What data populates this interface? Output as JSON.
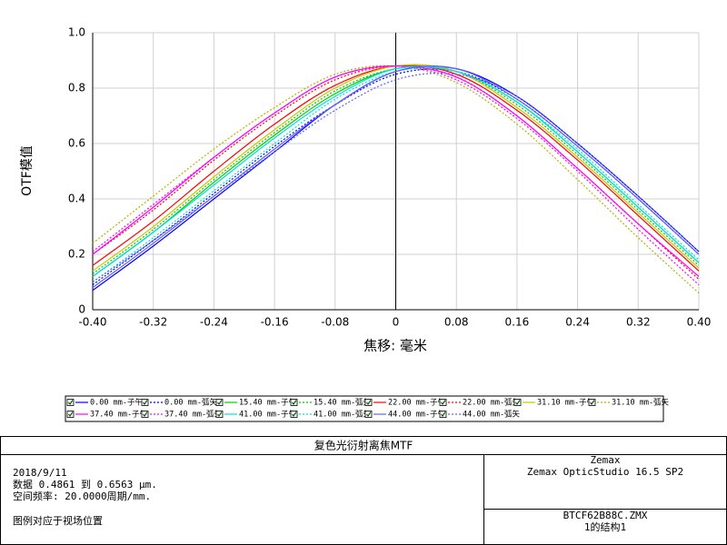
{
  "chart_data": {
    "type": "line",
    "y_label": "OTF模值",
    "x_label": "焦移: 毫米",
    "x": [
      -0.4,
      -0.32,
      -0.24,
      -0.16,
      -0.08,
      0,
      0.08,
      0.16,
      0.24,
      0.32,
      0.4
    ],
    "xlim": [
      -0.4,
      0.4
    ],
    "xticks": [
      {
        "value": -0.4,
        "label": "-0.40"
      },
      -0.32,
      -0.24,
      -0.16,
      -0.08,
      0,
      0.08,
      0.16,
      0.24,
      0.32,
      {
        "value": 0.4,
        "label": "0.40"
      }
    ],
    "ylim": [
      0,
      1
    ],
    "yticks": [
      0,
      0.2,
      0.4,
      0.6,
      0.8,
      {
        "value": 1,
        "label": "1.0"
      }
    ],
    "grid": true,
    "series": [
      {
        "name": "0.00 mm-子午",
        "color": "#0000ff",
        "dash": false,
        "values": [
          0.07,
          0.23,
          0.4,
          0.57,
          0.74,
          0.86,
          0.87,
          0.77,
          0.6,
          0.41,
          0.21
        ]
      },
      {
        "name": "0.00 mm-弧矢",
        "color": "#0000ff",
        "dash": true,
        "values": [
          0.09,
          0.25,
          0.42,
          0.59,
          0.74,
          0.85,
          0.86,
          0.76,
          0.59,
          0.4,
          0.2
        ]
      },
      {
        "name": "15.40 mm-子午",
        "color": "#00cc00",
        "dash": false,
        "values": [
          0.12,
          0.28,
          0.46,
          0.63,
          0.78,
          0.87,
          0.86,
          0.75,
          0.57,
          0.37,
          0.17
        ]
      },
      {
        "name": "15.40 mm-弧矢",
        "color": "#00cc00",
        "dash": true,
        "values": [
          0.13,
          0.29,
          0.47,
          0.64,
          0.79,
          0.87,
          0.86,
          0.74,
          0.56,
          0.36,
          0.16
        ]
      },
      {
        "name": "22.00 mm-子午",
        "color": "#ff0000",
        "dash": false,
        "values": [
          0.16,
          0.32,
          0.5,
          0.67,
          0.81,
          0.88,
          0.85,
          0.72,
          0.54,
          0.34,
          0.14
        ]
      },
      {
        "name": "22.00 mm-弧矢",
        "color": "#ff0000",
        "dash": true,
        "values": [
          0.2,
          0.36,
          0.54,
          0.7,
          0.83,
          0.88,
          0.84,
          0.7,
          0.51,
          0.31,
          0.11
        ]
      },
      {
        "name": "31.10 mm-子午",
        "color": "#c8c800",
        "dash": false,
        "values": [
          0.14,
          0.3,
          0.48,
          0.65,
          0.8,
          0.88,
          0.86,
          0.73,
          0.55,
          0.35,
          0.15
        ]
      },
      {
        "name": "31.10 mm-弧矢",
        "color": "#b4b400",
        "dash": true,
        "values": [
          0.24,
          0.41,
          0.58,
          0.73,
          0.85,
          0.88,
          0.82,
          0.67,
          0.47,
          0.26,
          0.06
        ]
      },
      {
        "name": "37.40 mm-子午",
        "color": "#ff00ff",
        "dash": false,
        "values": [
          0.2,
          0.37,
          0.55,
          0.71,
          0.84,
          0.88,
          0.84,
          0.7,
          0.51,
          0.31,
          0.12
        ]
      },
      {
        "name": "37.40 mm-弧矢",
        "color": "#ff00ff",
        "dash": true,
        "values": [
          0.21,
          0.38,
          0.55,
          0.71,
          0.84,
          0.88,
          0.83,
          0.69,
          0.5,
          0.29,
          0.09
        ]
      },
      {
        "name": "41.00 mm-子午",
        "color": "#00e0e0",
        "dash": false,
        "values": [
          0.12,
          0.28,
          0.45,
          0.62,
          0.77,
          0.87,
          0.86,
          0.75,
          0.57,
          0.37,
          0.17
        ]
      },
      {
        "name": "41.00 mm-弧矢",
        "color": "#00e0e0",
        "dash": true,
        "values": [
          0.1,
          0.26,
          0.43,
          0.6,
          0.76,
          0.86,
          0.86,
          0.75,
          0.58,
          0.38,
          0.18
        ]
      },
      {
        "name": "44.00 mm-子午",
        "color": "#6060ff",
        "dash": false,
        "values": [
          0.08,
          0.24,
          0.41,
          0.58,
          0.74,
          0.86,
          0.87,
          0.76,
          0.59,
          0.4,
          0.2
        ]
      },
      {
        "name": "44.00 mm-弧矢",
        "color": "#6060ff",
        "dash": true,
        "values": [
          0.1,
          0.25,
          0.41,
          0.57,
          0.72,
          0.83,
          0.85,
          0.77,
          0.6,
          0.41,
          0.21
        ]
      }
    ]
  },
  "info": {
    "title": "复色光衍射离焦MTF",
    "left": [
      "2018/9/11",
      "数据 0.4861 到 0.6563 μm.",
      "空间频率: 20.0000周期/mm."
    ],
    "legend_note": "图例对应于视场位置",
    "software": [
      "Zemax",
      "Zemax OpticStudio 16.5 SP2"
    ],
    "file": [
      "BTCF62B88C.ZMX",
      "1的结构1"
    ]
  }
}
